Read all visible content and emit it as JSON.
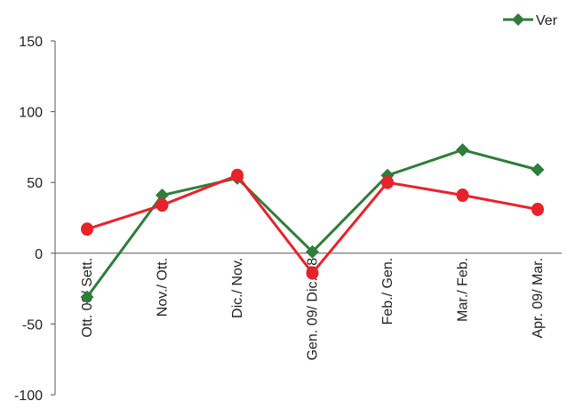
{
  "chart_data": {
    "type": "line",
    "title": "",
    "xlabel": "",
    "ylabel": "",
    "categories": [
      "Ott. 08/ Sett.",
      "Nov./ Ott.",
      "Dic./ Nov.",
      "Gen. 09/ Dic. 08",
      "Feb./ Gen.",
      "Mar./ Feb.",
      "Apr. 09/ Mar."
    ],
    "ylim": [
      -100,
      150
    ],
    "yticks": [
      -100,
      -50,
      0,
      50,
      100,
      150
    ],
    "grid": false,
    "legend": "top-right",
    "series": [
      {
        "name": "Ver",
        "color": "#2e7d3a",
        "marker": "diamond",
        "values": [
          -31,
          41,
          53,
          1,
          55,
          73,
          59
        ]
      },
      {
        "color": "#e8222a",
        "marker": "circle",
        "values": [
          17,
          34,
          55,
          -14,
          50,
          41,
          31
        ]
      }
    ]
  }
}
